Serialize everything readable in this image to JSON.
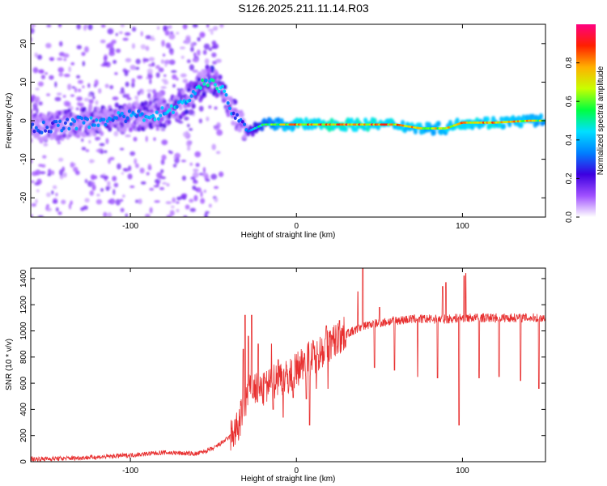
{
  "title": "S126.2025.211.11.14.R03",
  "chart_data": [
    {
      "type": "heatmap",
      "xlabel": "Height of straight line (km)",
      "ylabel": "Frequency (Hz)",
      "xlim": [
        -160,
        150
      ],
      "ylim": [
        -25,
        25
      ],
      "x_ticks": [
        -100,
        0,
        100
      ],
      "y_ticks": [
        -20,
        -10,
        0,
        10,
        20
      ],
      "colorbar": {
        "label": "Normalized spectral amplitude",
        "range": [
          0,
          1
        ],
        "ticks": [
          "0.0",
          "0.2",
          "0.4",
          "0.6",
          "0.8"
        ],
        "tick_values": [
          0,
          0.2,
          0.4,
          0.6,
          0.8
        ],
        "colors": [
          "#ffffff",
          "#a050ff",
          "#3c00e0",
          "#0080ff",
          "#00e0ff",
          "#00ff40",
          "#c8ff00",
          "#ffb000",
          "#ff2000",
          "#ff0080"
        ]
      },
      "ridge": {
        "x": [
          -155,
          -140,
          -120,
          -100,
          -80,
          -70,
          -60,
          -52,
          -45,
          -38,
          -33,
          -30,
          -20,
          0,
          20,
          40,
          60,
          75,
          80,
          90,
          100,
          120,
          140,
          150
        ],
        "freq": [
          -2,
          -1,
          0,
          1,
          2,
          4,
          8,
          11,
          8,
          2,
          0,
          -3,
          -1,
          -1,
          -1,
          -1,
          -1,
          -2,
          -2,
          -2,
          -0.5,
          -0.5,
          0,
          0
        ],
        "amplitude": [
          0.3,
          0.35,
          0.4,
          0.4,
          0.45,
          0.45,
          0.5,
          0.5,
          0.45,
          0.35,
          0.3,
          0.35,
          0.6,
          0.85,
          0.9,
          0.9,
          0.85,
          0.8,
          0.75,
          0.8,
          0.85,
          0.85,
          0.8,
          0.7
        ]
      }
    },
    {
      "type": "line",
      "xlabel": "Height of straight line (km)",
      "ylabel": "SNR (10 * v/v)",
      "xlim": [
        -160,
        150
      ],
      "ylim": [
        0,
        1480
      ],
      "x_ticks": [
        -100,
        0,
        100
      ],
      "y_ticks": [
        0,
        200,
        400,
        600,
        800,
        1000,
        1200,
        1400
      ],
      "color": "#e83030",
      "baseline": {
        "x": [
          -160,
          -140,
          -120,
          -100,
          -80,
          -60,
          -50,
          -40,
          -35,
          -32,
          -28,
          -25,
          -20,
          -15,
          -10,
          -5,
          0,
          5,
          10,
          15,
          20,
          25,
          30,
          35,
          40,
          45,
          50,
          60,
          70,
          80,
          90,
          100,
          110,
          120,
          130,
          140,
          150
        ],
        "y": [
          20,
          25,
          35,
          50,
          70,
          60,
          100,
          190,
          260,
          420,
          550,
          560,
          540,
          600,
          650,
          640,
          700,
          780,
          800,
          850,
          900,
          940,
          980,
          1000,
          1040,
          1050,
          1060,
          1080,
          1090,
          1090,
          1090,
          1100,
          1100,
          1100,
          1100,
          1100,
          1100
        ]
      },
      "spikes": [
        {
          "x": -32,
          "y": 860
        },
        {
          "x": -31,
          "y": 1120
        },
        {
          "x": -29,
          "y": 960
        },
        {
          "x": -27,
          "y": 1120
        },
        {
          "x": -23,
          "y": 900
        },
        {
          "x": -19,
          "y": 640
        },
        {
          "x": -15,
          "y": 900
        },
        {
          "x": -11,
          "y": 780
        },
        {
          "x": 13,
          "y": 820
        },
        {
          "x": 18,
          "y": 1040
        },
        {
          "x": 26,
          "y": 1080
        },
        {
          "x": 37,
          "y": 1300
        },
        {
          "x": 40,
          "y": 1480
        },
        {
          "x": 50,
          "y": 1180
        },
        {
          "x": 88,
          "y": 1340
        },
        {
          "x": 90,
          "y": 1370
        },
        {
          "x": 101,
          "y": 1420
        },
        {
          "x": 102,
          "y": 1440
        }
      ],
      "dips": [
        {
          "x": -14,
          "y": 400
        },
        {
          "x": -8,
          "y": 340
        },
        {
          "x": -2,
          "y": 490
        },
        {
          "x": 6,
          "y": 480
        },
        {
          "x": 8,
          "y": 280
        },
        {
          "x": 12,
          "y": 560
        },
        {
          "x": 19,
          "y": 560
        },
        {
          "x": 47,
          "y": 720
        },
        {
          "x": 59,
          "y": 700
        },
        {
          "x": 73,
          "y": 650
        },
        {
          "x": 85,
          "y": 640
        },
        {
          "x": 98,
          "y": 280
        },
        {
          "x": 110,
          "y": 640
        },
        {
          "x": 122,
          "y": 650
        },
        {
          "x": 135,
          "y": 620
        },
        {
          "x": 146,
          "y": 560
        }
      ]
    }
  ]
}
